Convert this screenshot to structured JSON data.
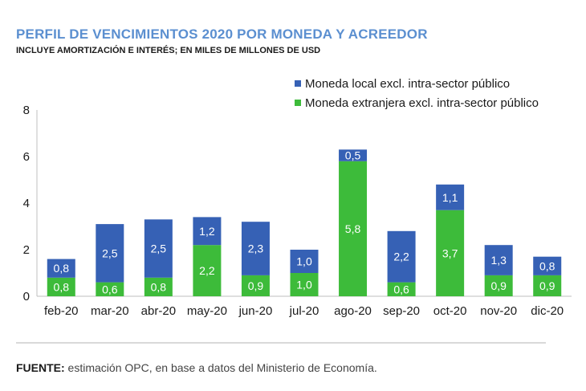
{
  "title": "PERFIL DE VENCIMIENTOS 2020 POR MONEDA Y ACREEDOR",
  "subtitle": "INCLUYE AMORTIZACIÓN E INTERÉS; EN MILES DE MILLONES DE USD",
  "source": {
    "label": "FUENTE:",
    "text": " estimación OPC, en base a datos del Ministerio de Economía."
  },
  "colors": {
    "local": "#3661b5",
    "foreign": "#3dbb3a",
    "title": "#5b8fd0"
  },
  "chart_data": {
    "type": "bar",
    "stacked": true,
    "title": "PERFIL DE VENCIMIENTOS 2020 POR MONEDA Y ACREEDOR",
    "xlabel": "",
    "ylabel": "",
    "ylim": [
      0,
      8
    ],
    "yticks": [
      "0",
      "2",
      "4",
      "6",
      "8"
    ],
    "legend_position": "top-right",
    "categories": [
      "feb-20",
      "mar-20",
      "abr-20",
      "may-20",
      "jun-20",
      "jul-20",
      "ago-20",
      "sep-20",
      "oct-20",
      "nov-20",
      "dic-20"
    ],
    "series": [
      {
        "name": "Moneda extranjera excl. intra-sector público",
        "values": [
          0.8,
          0.6,
          0.8,
          2.2,
          0.9,
          1.0,
          5.8,
          0.6,
          3.7,
          0.9,
          0.9
        ],
        "labels": [
          "0,8",
          "0,6",
          "0,8",
          "2,2",
          "0,9",
          "1,0",
          "5,8",
          "0,6",
          "3,7",
          "0,9",
          "0,9"
        ]
      },
      {
        "name": "Moneda local excl. intra-sector público",
        "values": [
          0.8,
          2.5,
          2.5,
          1.2,
          2.3,
          1.0,
          0.5,
          2.2,
          1.1,
          1.3,
          0.8
        ],
        "labels": [
          "0,8",
          "2,5",
          "2,5",
          "1,2",
          "2,3",
          "1,0",
          "0,5",
          "2,2",
          "1,1",
          "1,3",
          "0,8"
        ]
      }
    ]
  }
}
